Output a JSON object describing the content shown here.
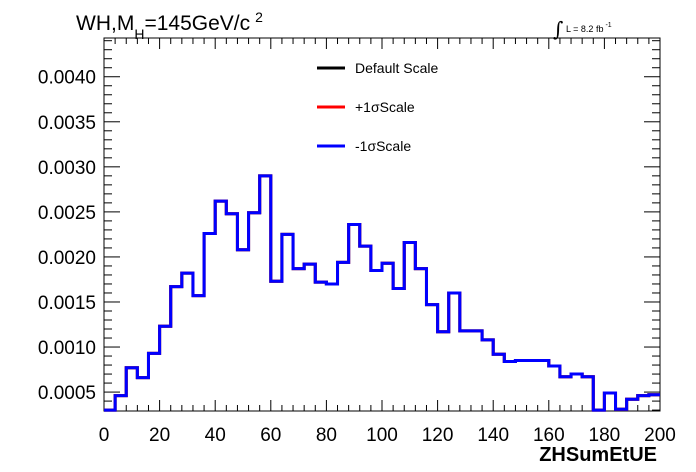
{
  "chart_data": {
    "type": "line",
    "title": {
      "main": "WH,M",
      "subscript": "H",
      "rest": "=145GeV/c",
      "superscript": "2"
    },
    "lumi": {
      "integral_symbol": "∫",
      "text": "L = 8.2 fb",
      "superscript": "-1"
    },
    "xlabel": "ZHSumEtUE",
    "ylabel": "",
    "xlim": [
      0,
      200
    ],
    "ylim": [
      0.00029,
      0.00443
    ],
    "x_ticks": [
      {
        "value": 0,
        "label": "0"
      },
      {
        "value": 20,
        "label": "20"
      },
      {
        "value": 40,
        "label": "40"
      },
      {
        "value": 60,
        "label": "60"
      },
      {
        "value": 80,
        "label": "80"
      },
      {
        "value": 100,
        "label": "100"
      },
      {
        "value": 120,
        "label": "120"
      },
      {
        "value": 140,
        "label": "140"
      },
      {
        "value": 160,
        "label": "160"
      },
      {
        "value": 180,
        "label": "180"
      },
      {
        "value": 200,
        "label": "200"
      }
    ],
    "y_ticks": [
      {
        "value": 0.0005,
        "label": "0.0005"
      },
      {
        "value": 0.001,
        "label": "0.0010"
      },
      {
        "value": 0.0015,
        "label": "0.0015"
      },
      {
        "value": 0.002,
        "label": "0.0020"
      },
      {
        "value": 0.0025,
        "label": "0.0025"
      },
      {
        "value": 0.003,
        "label": "0.0030"
      },
      {
        "value": 0.0035,
        "label": "0.0035"
      },
      {
        "value": 0.004,
        "label": "0.0040"
      }
    ],
    "bin_width": 4,
    "bin_edges_start": 0,
    "series": [
      {
        "name": "Default Scale",
        "color": "#000000",
        "values": [
          0.0003,
          0.00046,
          0.00077,
          0.00066,
          0.00093,
          0.00123,
          0.00167,
          0.00182,
          0.00157,
          0.00226,
          0.00262,
          0.00248,
          0.00208,
          0.00249,
          0.0029,
          0.00173,
          0.00225,
          0.00187,
          0.00192,
          0.00172,
          0.0017,
          0.00194,
          0.00236,
          0.00212,
          0.00185,
          0.00193,
          0.00165,
          0.00216,
          0.00187,
          0.00147,
          0.00117,
          0.0016,
          0.00118,
          0.00118,
          0.00108,
          0.00092,
          0.00084,
          0.00085,
          0.00085,
          0.00085,
          0.00079,
          0.00067,
          0.0007,
          0.00067,
          0.0003,
          0.00049,
          0.00031,
          0.00042,
          0.00046,
          0.00047
        ]
      },
      {
        "name": "+1σScale",
        "color": "#ff0000",
        "values": [
          0.0003,
          0.00046,
          0.00077,
          0.00066,
          0.00093,
          0.00123,
          0.00167,
          0.00182,
          0.00157,
          0.00226,
          0.00262,
          0.00248,
          0.00208,
          0.00249,
          0.0029,
          0.00173,
          0.00225,
          0.00187,
          0.00192,
          0.00172,
          0.0017,
          0.00194,
          0.00236,
          0.00212,
          0.00185,
          0.00193,
          0.00165,
          0.00216,
          0.00187,
          0.00147,
          0.00117,
          0.0016,
          0.00118,
          0.00118,
          0.00108,
          0.00092,
          0.00084,
          0.00085,
          0.00085,
          0.00085,
          0.00079,
          0.00067,
          0.0007,
          0.00067,
          0.0003,
          0.00049,
          0.00031,
          0.00042,
          0.00046,
          0.00047
        ]
      },
      {
        "name": "-1σScale",
        "color": "#0000ff",
        "values": [
          0.0003,
          0.00046,
          0.00077,
          0.00066,
          0.00093,
          0.00123,
          0.00167,
          0.00182,
          0.00157,
          0.00226,
          0.00262,
          0.00248,
          0.00208,
          0.00249,
          0.0029,
          0.00173,
          0.00225,
          0.00187,
          0.00192,
          0.00172,
          0.0017,
          0.00194,
          0.00236,
          0.00212,
          0.00185,
          0.00193,
          0.00165,
          0.00216,
          0.00187,
          0.00147,
          0.00117,
          0.0016,
          0.00118,
          0.00118,
          0.00108,
          0.00092,
          0.00084,
          0.00085,
          0.00085,
          0.00085,
          0.00079,
          0.00067,
          0.0007,
          0.00067,
          0.0003,
          0.00049,
          0.00031,
          0.00042,
          0.00046,
          0.00047
        ]
      }
    ],
    "legend_position": "top-right",
    "grid": false
  }
}
